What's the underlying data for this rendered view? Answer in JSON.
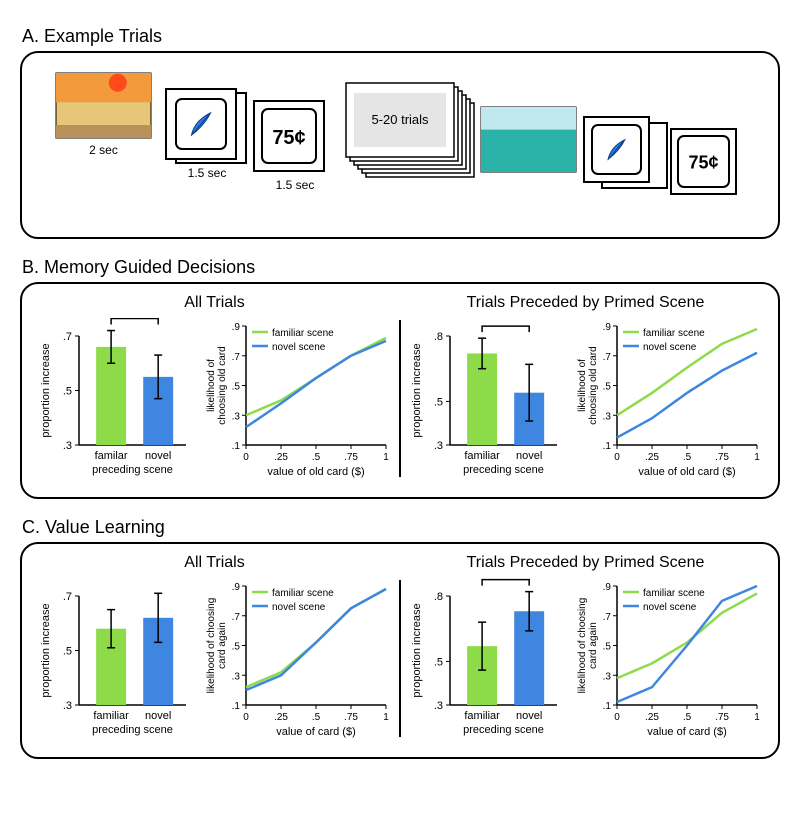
{
  "colors": {
    "familiar": "#8edb4a",
    "novel": "#3f86e0",
    "axis": "#000000",
    "bg": "#ffffff",
    "error": "#000000"
  },
  "panelA": {
    "label": "A.  Example Trials",
    "timing": {
      "scene": "2 sec",
      "card": "1.5 sec",
      "reward": "1.5 sec"
    },
    "reward_text": "75¢",
    "mid_label": "5-20 trials"
  },
  "panelB": {
    "label": "B.  Memory Guided Decisions",
    "left_title": "All Trials",
    "right_title": "Trials Preceded by Primed Scene",
    "left": {
      "bar": {
        "ylabel": "proportion increase",
        "xlabel": "preceding scene",
        "xticks": [
          "familar",
          "novel"
        ],
        "ylim": [
          0.3,
          0.7
        ],
        "yticks": [
          0.3,
          0.5,
          0.7
        ],
        "values": {
          "familiar": 0.66,
          "novel": 0.55
        },
        "errors": {
          "familiar": 0.06,
          "novel": 0.08
        },
        "sig": true
      },
      "curve": {
        "ylabel": "likelihood of\nchoosing old card",
        "xlabel": "value of old card ($)",
        "xlim": [
          0,
          1
        ],
        "xticks": [
          0,
          0.25,
          0.5,
          0.75,
          1
        ],
        "ylim": [
          0.1,
          0.9
        ],
        "yticks": [
          0.1,
          0.3,
          0.5,
          0.7,
          0.9
        ],
        "legend": {
          "familiar": "familiar scene",
          "novel": "novel scene"
        },
        "familiar_pts": [
          [
            0,
            0.3
          ],
          [
            0.25,
            0.4
          ],
          [
            0.5,
            0.55
          ],
          [
            0.75,
            0.7
          ],
          [
            1,
            0.82
          ]
        ],
        "novel_pts": [
          [
            0,
            0.22
          ],
          [
            0.25,
            0.38
          ],
          [
            0.5,
            0.55
          ],
          [
            0.75,
            0.7
          ],
          [
            1,
            0.8
          ]
        ]
      }
    },
    "right": {
      "bar": {
        "ylabel": "proportion increase",
        "xlabel": "preceding scene",
        "xticks": [
          "familiar",
          "novel"
        ],
        "ylim": [
          0.3,
          0.8
        ],
        "yticks": [
          0.3,
          0.5,
          0.8
        ],
        "values": {
          "familiar": 0.72,
          "novel": 0.54
        },
        "errors": {
          "familiar": 0.07,
          "novel": 0.13
        },
        "sig": true
      },
      "curve": {
        "ylabel": "likelihood of\nchoosing old card",
        "xlabel": "value of old card ($)",
        "xlim": [
          0,
          1
        ],
        "xticks": [
          0,
          0.25,
          0.5,
          0.75,
          1
        ],
        "ylim": [
          0.1,
          0.9
        ],
        "yticks": [
          0.1,
          0.3,
          0.5,
          0.7,
          0.9
        ],
        "legend": {
          "familiar": "familiar scene",
          "novel": "novel scene"
        },
        "familiar_pts": [
          [
            0,
            0.3
          ],
          [
            0.25,
            0.45
          ],
          [
            0.5,
            0.62
          ],
          [
            0.75,
            0.78
          ],
          [
            1,
            0.88
          ]
        ],
        "novel_pts": [
          [
            0,
            0.15
          ],
          [
            0.25,
            0.28
          ],
          [
            0.5,
            0.45
          ],
          [
            0.75,
            0.6
          ],
          [
            1,
            0.72
          ]
        ]
      }
    }
  },
  "panelC": {
    "label": "C.  Value Learning",
    "left_title": "All Trials",
    "right_title": "Trials Preceded by Primed Scene",
    "left": {
      "bar": {
        "ylabel": "proportion increase",
        "xlabel": "preceding scene",
        "xticks": [
          "familiar",
          "novel"
        ],
        "ylim": [
          0.3,
          0.7
        ],
        "yticks": [
          0.3,
          0.5,
          0.7
        ],
        "values": {
          "familiar": 0.58,
          "novel": 0.62
        },
        "errors": {
          "familiar": 0.07,
          "novel": 0.09
        },
        "sig": false
      },
      "curve": {
        "ylabel": "likelihood of choosing\ncard again",
        "xlabel": "value of card ($)",
        "xlim": [
          0,
          1
        ],
        "xticks": [
          0,
          0.25,
          0.5,
          0.75,
          1
        ],
        "ylim": [
          0.1,
          0.9
        ],
        "yticks": [
          0.1,
          0.3,
          0.5,
          0.7,
          0.9
        ],
        "legend": {
          "familiar": "familiar scene",
          "novel": "novel scene"
        },
        "familiar_pts": [
          [
            0,
            0.22
          ],
          [
            0.25,
            0.32
          ],
          [
            0.5,
            0.52
          ],
          [
            0.75,
            0.75
          ],
          [
            1,
            0.88
          ]
        ],
        "novel_pts": [
          [
            0,
            0.2
          ],
          [
            0.25,
            0.3
          ],
          [
            0.5,
            0.52
          ],
          [
            0.75,
            0.75
          ],
          [
            1,
            0.88
          ]
        ]
      }
    },
    "right": {
      "bar": {
        "ylabel": "proportion increase",
        "xlabel": "preceding scene",
        "xticks": [
          "familiar",
          "novel"
        ],
        "ylim": [
          0.3,
          0.8
        ],
        "yticks": [
          0.3,
          0.5,
          0.8
        ],
        "values": {
          "familiar": 0.57,
          "novel": 0.73
        },
        "errors": {
          "familiar": 0.11,
          "novel": 0.09
        },
        "sig": true
      },
      "curve": {
        "ylabel": "likelihood of choosing\ncard again",
        "xlabel": "value of card ($)",
        "xlim": [
          0,
          1
        ],
        "xticks": [
          0,
          0.25,
          0.5,
          0.75,
          1
        ],
        "ylim": [
          0.1,
          0.9
        ],
        "yticks": [
          0.1,
          0.3,
          0.5,
          0.7,
          0.9
        ],
        "legend": {
          "familiar": "familiar scene",
          "novel": "novel scene"
        },
        "familiar_pts": [
          [
            0,
            0.28
          ],
          [
            0.25,
            0.38
          ],
          [
            0.5,
            0.52
          ],
          [
            0.75,
            0.72
          ],
          [
            1,
            0.85
          ]
        ],
        "novel_pts": [
          [
            0,
            0.12
          ],
          [
            0.25,
            0.22
          ],
          [
            0.5,
            0.5
          ],
          [
            0.75,
            0.8
          ],
          [
            1,
            0.9
          ]
        ]
      }
    }
  }
}
